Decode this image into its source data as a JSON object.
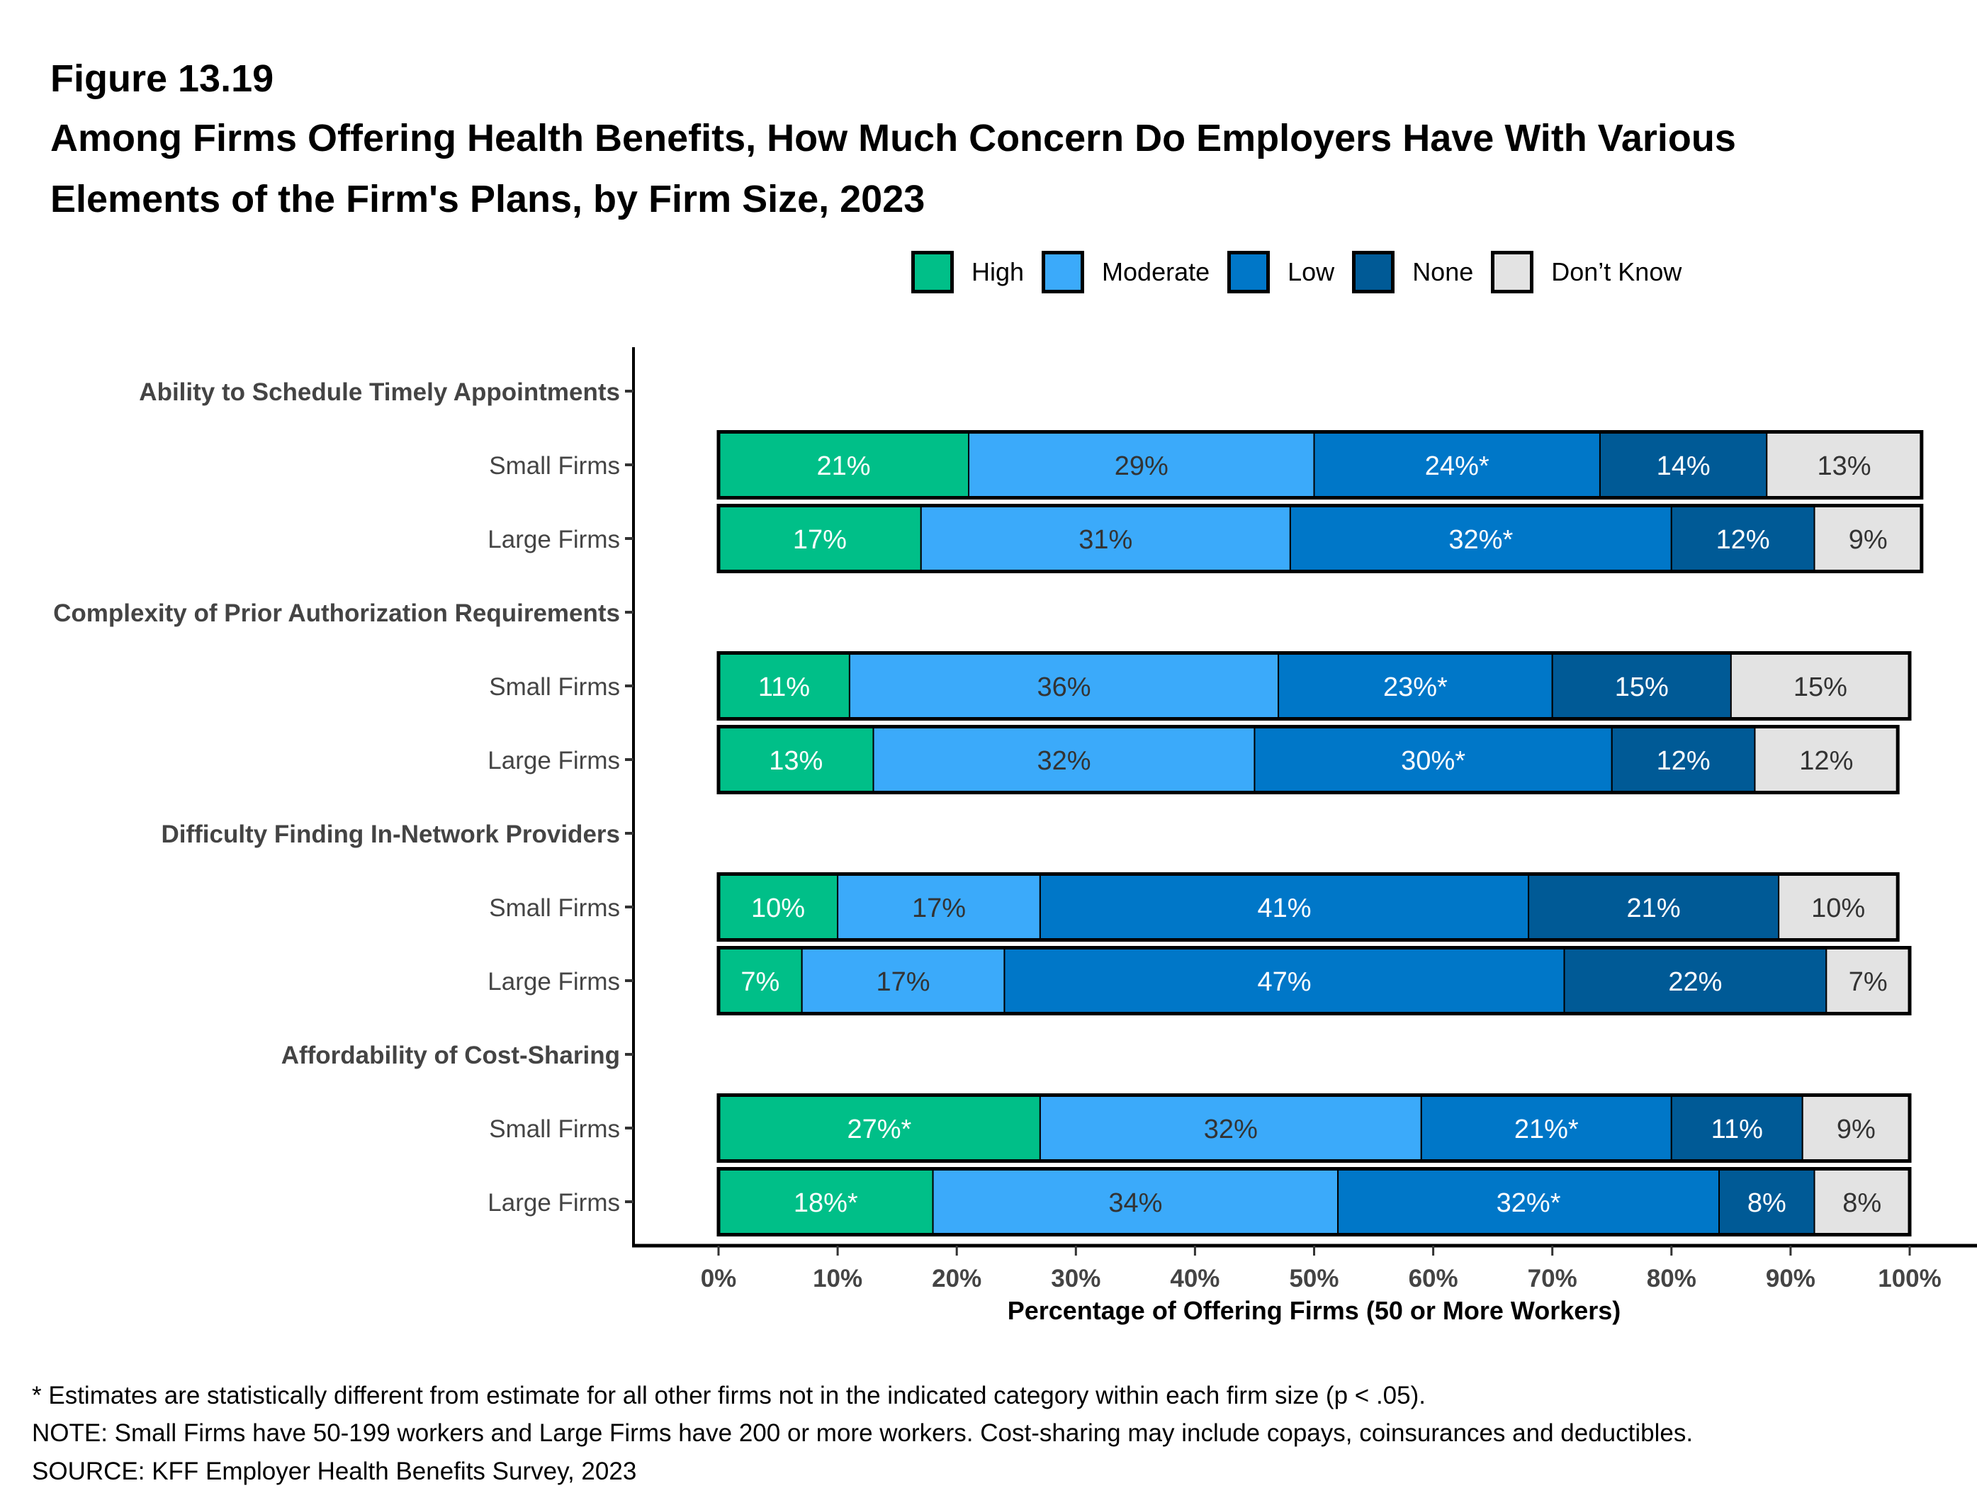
{
  "figure_number": "Figure 13.19",
  "title_lines": [
    "Among Firms Offering Health Benefits, How Much Concern Do Employers Have With Various",
    "Elements of the Firm's Plans, by Firm Size, 2023"
  ],
  "legend": [
    {
      "label": "High",
      "color": "#00BF88"
    },
    {
      "label": "Moderate",
      "color": "#3BAAFA"
    },
    {
      "label": "Low",
      "color": "#0077C8"
    },
    {
      "label": "None",
      "color": "#005A96"
    },
    {
      "label": "Don’t Know",
      "color": "#E3E3E3"
    }
  ],
  "chart_data": {
    "type": "bar",
    "orientation": "horizontal",
    "stacked": true,
    "title": "Among Firms Offering Health Benefits, How Much Concern Do Employers Have With Various Elements of the Firm's Plans, by Firm Size, 2023",
    "xlabel": "Percentage of Offering Firms (50 or More Workers)",
    "ylabel": "",
    "xlim": [
      0,
      100
    ],
    "x_ticks": [
      "0%",
      "10%",
      "20%",
      "30%",
      "40%",
      "50%",
      "60%",
      "70%",
      "80%",
      "90%",
      "100%"
    ],
    "legend_position": "top",
    "grid": false,
    "series_names": [
      "High",
      "Moderate",
      "Low",
      "None",
      "Don’t Know"
    ],
    "series_colors": [
      "#00BF88",
      "#3BAAFA",
      "#0077C8",
      "#005A96",
      "#E3E3E3"
    ],
    "label_text_colors": [
      "#FFFFFF",
      "#333333",
      "#FFFFFF",
      "#FFFFFF",
      "#333333"
    ],
    "groups": [
      {
        "category": "Ability to Schedule Timely Appointments",
        "rows": [
          {
            "label": "Small Firms",
            "values": [
              21,
              29,
              24,
              14,
              13
            ],
            "labels": [
              "21%",
              "29%",
              "24%*",
              "14%",
              "13%"
            ]
          },
          {
            "label": "Large Firms",
            "values": [
              17,
              31,
              32,
              12,
              9
            ],
            "labels": [
              "17%",
              "31%",
              "32%*",
              "12%",
              "9%"
            ]
          }
        ]
      },
      {
        "category": "Complexity of Prior Authorization Requirements",
        "rows": [
          {
            "label": "Small Firms",
            "values": [
              11,
              36,
              23,
              15,
              15
            ],
            "labels": [
              "11%",
              "36%",
              "23%*",
              "15%",
              "15%"
            ]
          },
          {
            "label": "Large Firms",
            "values": [
              13,
              32,
              30,
              12,
              12
            ],
            "labels": [
              "13%",
              "32%",
              "30%*",
              "12%",
              "12%"
            ]
          }
        ]
      },
      {
        "category": "Difficulty Finding In-Network Providers",
        "rows": [
          {
            "label": "Small Firms",
            "values": [
              10,
              17,
              41,
              21,
              10
            ],
            "labels": [
              "10%",
              "17%",
              "41%",
              "21%",
              "10%"
            ]
          },
          {
            "label": "Large Firms",
            "values": [
              7,
              17,
              47,
              22,
              7
            ],
            "labels": [
              "7%",
              "17%",
              "47%",
              "22%",
              "7%"
            ]
          }
        ]
      },
      {
        "category": "Affordability of Cost-Sharing",
        "rows": [
          {
            "label": "Small Firms",
            "values": [
              27,
              32,
              21,
              11,
              9
            ],
            "labels": [
              "27%*",
              "32%",
              "21%*",
              "11%",
              "9%"
            ]
          },
          {
            "label": "Large Firms",
            "values": [
              18,
              34,
              32,
              8,
              8
            ],
            "labels": [
              "18%*",
              "34%",
              "32%*",
              "8%",
              "8%"
            ]
          }
        ]
      }
    ]
  },
  "footnotes": [
    "* Estimates are statistically different from estimate for all other firms not in the indicated category within each firm size (p < .05).",
    "NOTE: Small Firms have 50-199 workers and Large Firms have 200 or more workers.  Cost-sharing may include copays, coinsurances and deductibles.",
    "SOURCE: KFF Employer Health Benefits Survey, 2023"
  ]
}
